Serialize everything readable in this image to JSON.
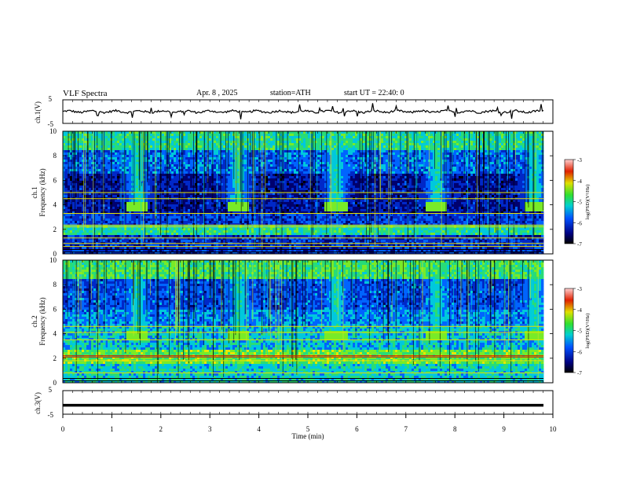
{
  "header": {
    "title": "VLF  Spectra",
    "date": "Apr. 8  , 2025",
    "station": "station=ATH",
    "start_ut": "start  UT  =   22:40: 0"
  },
  "chart_data": [
    {
      "type": "line",
      "ylabel": "ch.1(V)",
      "ylim": [
        -5,
        5
      ],
      "yticks": [
        5,
        -5
      ],
      "xlim": [
        0,
        10
      ],
      "series": [
        {
          "values_description_free": true,
          "mean": 0.0,
          "amplitude_typ": 1.0
        }
      ]
    },
    {
      "type": "heatmap",
      "ylabel": "Frequency (kHz)",
      "panel_label": "ch.1",
      "ylim": [
        0,
        10
      ],
      "yticks": [
        0,
        2,
        4,
        6,
        8,
        10
      ],
      "xlim": [
        0,
        9.8
      ],
      "colorbar": {
        "label": "log(PSD) (V^2/Hz)",
        "range": [
          -7,
          -3
        ],
        "ticks": [
          -3,
          -4,
          -5,
          -6,
          -7
        ]
      },
      "bursts_min": [
        1.5,
        3.55,
        5.55,
        7.6,
        9.6
      ],
      "burst_band_khz": [
        3.5,
        4.3
      ]
    },
    {
      "type": "heatmap",
      "ylabel": "Frequency (kHz)",
      "panel_label": "ch.2",
      "ylim": [
        0,
        10
      ],
      "yticks": [
        0,
        2,
        4,
        6,
        8,
        10
      ],
      "xlim": [
        0,
        9.8
      ],
      "colorbar": {
        "label": "log(PSD) (V^2/Hz)",
        "range": [
          -7,
          -3
        ],
        "ticks": [
          -3,
          -4,
          -5,
          -6,
          -7
        ]
      },
      "bursts_min": [
        1.5,
        3.55,
        5.55,
        7.6,
        9.6
      ],
      "burst_band_khz": [
        3.5,
        4.3
      ]
    },
    {
      "type": "line",
      "ylabel": "ch.3(V)",
      "ylim": [
        -5,
        5
      ],
      "yticks": [
        5,
        -5
      ],
      "xlim": [
        0,
        10
      ],
      "series": [
        {
          "values": [
            -1.2,
            -1.2
          ]
        }
      ]
    }
  ],
  "xaxis": {
    "label": "Time  (min)",
    "ticks": [
      "0",
      "1",
      "2",
      "3",
      "4",
      "5",
      "6",
      "7",
      "8",
      "9",
      "10"
    ]
  },
  "colorbar_label": "log(PSD)(V²/Hz)",
  "colorbar_ticks": [
    "-3",
    "-4",
    "-5",
    "-6",
    "-7"
  ],
  "panel_labels": {
    "ch1_line": "ch.1(V)",
    "ch1_spec": "ch.1",
    "ch2_spec": "ch.2",
    "ch3_line": "ch.3(V)",
    "freq_axis": "Frequency (kHz)"
  },
  "line_ticks": [
    "5",
    "-5"
  ],
  "freq_ticks": [
    "0",
    "2",
    "4",
    "6",
    "8",
    "10"
  ]
}
